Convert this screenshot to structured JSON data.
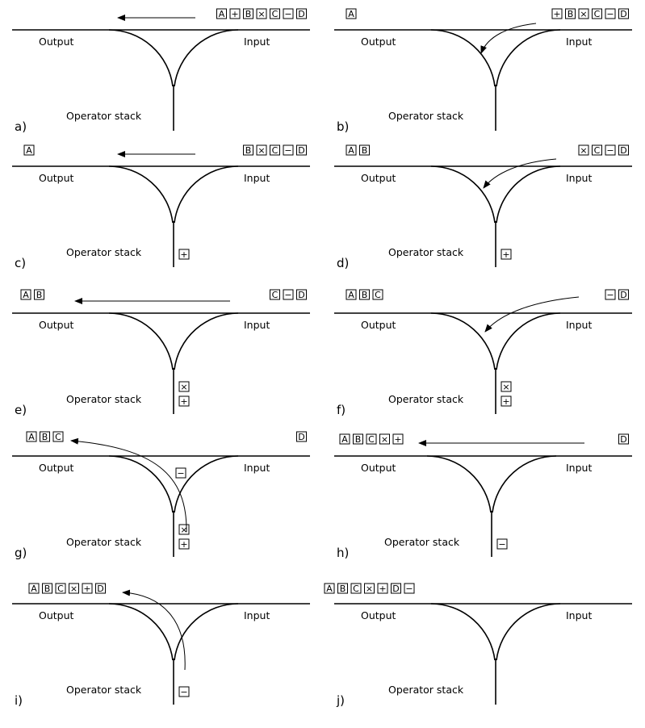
{
  "labels": {
    "output": "Output",
    "input": "Input",
    "stack": "Operator stack"
  },
  "panels": [
    {
      "id": "a",
      "label": "a)",
      "output": [],
      "input": [
        "A",
        "+",
        "B",
        "×",
        "C",
        "−",
        "D"
      ],
      "stack": [],
      "move": "input-to-output",
      "moved_token": "A"
    },
    {
      "id": "b",
      "label": "b)",
      "output": [
        "A"
      ],
      "input": [
        "+",
        "B",
        "×",
        "C",
        "−",
        "D"
      ],
      "stack": [],
      "move": "input-to-stack",
      "moved_token": "+"
    },
    {
      "id": "c",
      "label": "c)",
      "output": [
        "A"
      ],
      "input": [
        "B",
        "×",
        "C",
        "−",
        "D"
      ],
      "stack": [
        "+"
      ],
      "move": "input-to-output",
      "moved_token": "B"
    },
    {
      "id": "d",
      "label": "d)",
      "output": [
        "A",
        "B"
      ],
      "input": [
        "×",
        "C",
        "−",
        "D"
      ],
      "stack": [
        "+"
      ],
      "move": "input-to-stack",
      "moved_token": "×"
    },
    {
      "id": "e",
      "label": "e)",
      "output": [
        "A",
        "B"
      ],
      "input": [
        "C",
        "−",
        "D"
      ],
      "stack": [
        "×",
        "+"
      ],
      "move": "input-to-output",
      "moved_token": "C"
    },
    {
      "id": "f",
      "label": "f)",
      "output": [
        "A",
        "B",
        "C"
      ],
      "input": [
        "−",
        "D"
      ],
      "stack": [
        "×",
        "+"
      ],
      "move": "input-to-stack",
      "moved_token": "−"
    },
    {
      "id": "g",
      "label": "g)",
      "output": [
        "A",
        "B",
        "C"
      ],
      "input": [
        "D"
      ],
      "stack": [
        "×",
        "+"
      ],
      "pending": "−",
      "move": "stack-to-output",
      "moved_token": "×, +"
    },
    {
      "id": "h",
      "label": "h)",
      "output": [
        "A",
        "B",
        "C",
        "×",
        "+"
      ],
      "input": [
        "D"
      ],
      "stack": [
        "−"
      ],
      "move": "input-to-output",
      "moved_token": "D"
    },
    {
      "id": "i",
      "label": "i)",
      "output": [
        "A",
        "B",
        "C",
        "×",
        "+",
        "D"
      ],
      "input": [],
      "stack": [
        "−"
      ],
      "move": "stack-to-output",
      "moved_token": "−"
    },
    {
      "id": "j",
      "label": "j)",
      "output": [
        "A",
        "B",
        "C",
        "×",
        "+",
        "D",
        "−"
      ],
      "input": [],
      "stack": [],
      "move": "none",
      "moved_token": ""
    }
  ]
}
